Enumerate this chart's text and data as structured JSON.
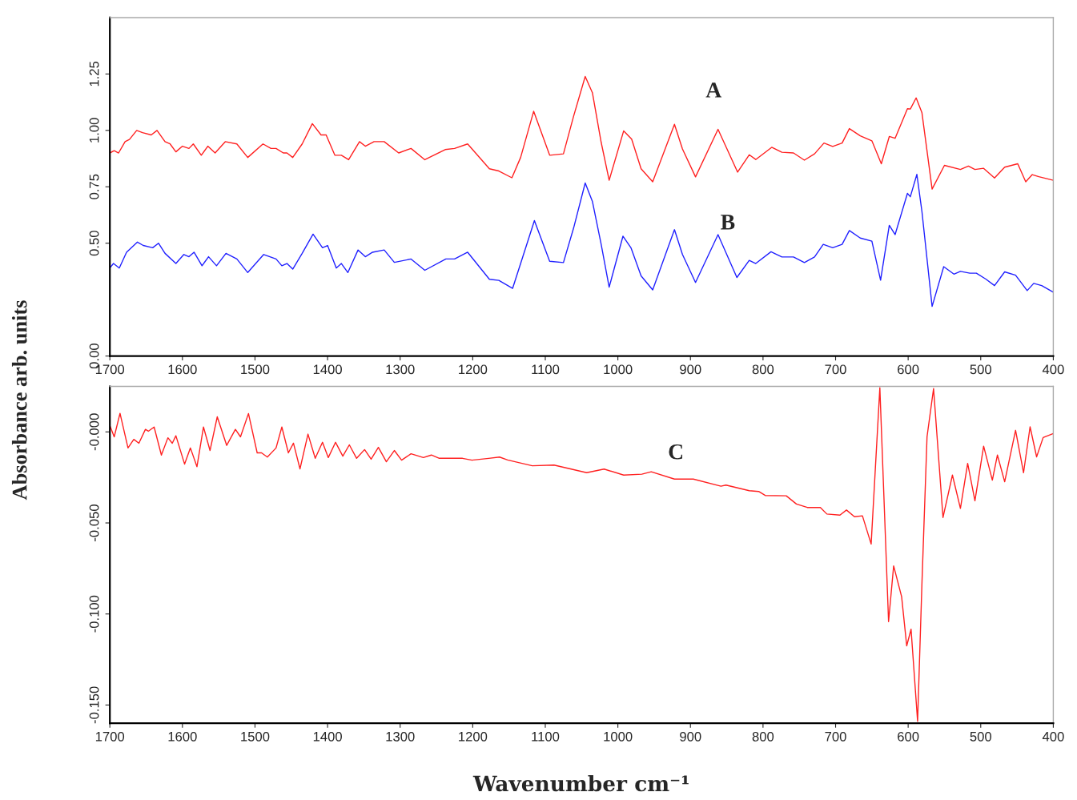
{
  "chart_data": [
    {
      "type": "line",
      "ylabel": "Absorbance arb. units",
      "xlim": [
        1700,
        400
      ],
      "ylim": [
        0,
        1.5
      ],
      "xticks": [
        1700,
        1600,
        1500,
        1400,
        1300,
        1200,
        1100,
        1000,
        900,
        800,
        700,
        600,
        500,
        400
      ],
      "yticks": [
        {
          "value": 0,
          "label": "0.00"
        },
        {
          "value": 0.5,
          "label": "0.50"
        },
        {
          "value": 0.75,
          "label": "0.75"
        },
        {
          "value": 1.0,
          "label": "1.00"
        },
        {
          "value": 1.25,
          "label": "1.25"
        }
      ],
      "grid": false,
      "marker": "none",
      "line_style": "solid",
      "annotations": [
        "A",
        "B"
      ],
      "series": [
        {
          "color": "#ff2020",
          "x": [
            1700,
            1694,
            1688,
            1679,
            1673,
            1663,
            1655,
            1643,
            1635,
            1624,
            1617,
            1609,
            1600,
            1591,
            1585,
            1574,
            1565,
            1555,
            1541,
            1525,
            1510,
            1489,
            1478,
            1471,
            1461,
            1456,
            1448,
            1435,
            1421,
            1409,
            1402,
            1390,
            1381,
            1371,
            1356,
            1348,
            1336,
            1322,
            1302,
            1285,
            1266,
            1238,
            1225,
            1207,
            1177,
            1164,
            1146,
            1134,
            1116,
            1094,
            1075,
            1061,
            1045,
            1035,
            1023,
            1012,
            992,
            981,
            968,
            952,
            922,
            911,
            893,
            862,
            835,
            819,
            810,
            788,
            774,
            758,
            743,
            729,
            716,
            704,
            691,
            681,
            666,
            650,
            637,
            626,
            618,
            601,
            597,
            589,
            581,
            567,
            550,
            528,
            517,
            508,
            496,
            481,
            467,
            449,
            438,
            429,
            420,
            400
          ],
          "values": [
            0.9,
            0.91,
            0.9,
            0.95,
            0.96,
            1.0,
            0.99,
            0.98,
            1.0,
            0.95,
            0.94,
            0.905,
            0.93,
            0.92,
            0.94,
            0.89,
            0.93,
            0.9,
            0.95,
            0.94,
            0.88,
            0.94,
            0.92,
            0.92,
            0.9,
            0.9,
            0.88,
            0.94,
            1.03,
            0.98,
            0.98,
            0.89,
            0.89,
            0.87,
            0.95,
            0.93,
            0.95,
            0.95,
            0.9,
            0.92,
            0.87,
            0.915,
            0.92,
            0.94,
            0.83,
            0.82,
            0.79,
            0.88,
            1.085,
            0.89,
            0.896,
            1.063,
            1.239,
            1.166,
            0.947,
            0.779,
            0.998,
            0.961,
            0.83,
            0.772,
            1.027,
            0.918,
            0.794,
            1.005,
            0.815,
            0.892,
            0.871,
            0.925,
            0.903,
            0.9,
            0.868,
            0.896,
            0.944,
            0.929,
            0.944,
            1.008,
            0.976,
            0.954,
            0.852,
            0.973,
            0.965,
            1.096,
            1.095,
            1.144,
            1.078,
            0.74,
            0.845,
            0.827,
            0.842,
            0.827,
            0.832,
            0.789,
            0.837,
            0.852,
            0.772,
            0.804,
            0.795,
            0.779
          ]
        },
        {
          "color": "#2020ff",
          "x": [
            1700,
            1695,
            1687,
            1677,
            1662,
            1654,
            1641,
            1633,
            1624,
            1609,
            1598,
            1591,
            1584,
            1573,
            1564,
            1553,
            1540,
            1525,
            1510,
            1488,
            1471,
            1463,
            1456,
            1448,
            1435,
            1420,
            1407,
            1400,
            1388,
            1381,
            1372,
            1358,
            1348,
            1338,
            1322,
            1308,
            1285,
            1266,
            1237,
            1225,
            1207,
            1177,
            1164,
            1145,
            1133,
            1115,
            1094,
            1075,
            1061,
            1045,
            1035,
            1023,
            1012,
            993,
            982,
            968,
            952,
            922,
            911,
            893,
            862,
            836,
            819,
            810,
            789,
            774,
            758,
            743,
            729,
            717,
            704,
            691,
            681,
            666,
            650,
            638,
            626,
            618,
            601,
            597,
            588,
            581,
            567,
            551,
            537,
            528,
            515,
            506,
            493,
            481,
            467,
            452,
            436,
            427,
            416,
            400
          ],
          "values": [
            0.39,
            0.41,
            0.39,
            0.46,
            0.505,
            0.49,
            0.48,
            0.5,
            0.455,
            0.41,
            0.45,
            0.44,
            0.46,
            0.4,
            0.44,
            0.4,
            0.455,
            0.43,
            0.37,
            0.45,
            0.43,
            0.4,
            0.41,
            0.385,
            0.455,
            0.54,
            0.48,
            0.49,
            0.39,
            0.41,
            0.37,
            0.47,
            0.44,
            0.46,
            0.47,
            0.415,
            0.43,
            0.38,
            0.43,
            0.43,
            0.46,
            0.34,
            0.335,
            0.3,
            0.42,
            0.6,
            0.42,
            0.414,
            0.567,
            0.767,
            0.684,
            0.495,
            0.305,
            0.531,
            0.48,
            0.355,
            0.293,
            0.56,
            0.45,
            0.326,
            0.538,
            0.348,
            0.424,
            0.41,
            0.462,
            0.439,
            0.439,
            0.414,
            0.439,
            0.495,
            0.48,
            0.495,
            0.556,
            0.523,
            0.509,
            0.336,
            0.579,
            0.538,
            0.721,
            0.706,
            0.805,
            0.64,
            0.22,
            0.396,
            0.363,
            0.375,
            0.367,
            0.367,
            0.341,
            0.312,
            0.373,
            0.358,
            0.29,
            0.322,
            0.312,
            0.283
          ]
        }
      ]
    },
    {
      "type": "line",
      "xlabel": "Wavenumber cm⁻¹",
      "xlim": [
        1700,
        400
      ],
      "ylim": [
        -0.16,
        0.025
      ],
      "xticks": [
        1700,
        1600,
        1500,
        1400,
        1300,
        1200,
        1100,
        1000,
        900,
        800,
        700,
        600,
        500,
        400
      ],
      "yticks": [
        {
          "value": 0,
          "label": "-0.000"
        },
        {
          "value": -0.05,
          "label": "-0.050"
        },
        {
          "value": -0.1,
          "label": "-0.100"
        },
        {
          "value": -0.15,
          "label": "-0.150"
        }
      ],
      "grid": false,
      "marker": "none",
      "line_style": "solid",
      "annotations": [
        "C"
      ],
      "series": [
        {
          "color": "#ff2020",
          "x": [
            1700,
            1694,
            1686,
            1675,
            1667,
            1660,
            1651,
            1647,
            1639,
            1629,
            1620,
            1614,
            1609,
            1597,
            1589,
            1580,
            1571,
            1562,
            1552,
            1539,
            1527,
            1520,
            1509,
            1497,
            1491,
            1483,
            1471,
            1463,
            1454,
            1447,
            1438,
            1427,
            1417,
            1407,
            1399,
            1389,
            1379,
            1370,
            1360,
            1349,
            1340,
            1330,
            1319,
            1308,
            1298,
            1285,
            1268,
            1257,
            1246,
            1214,
            1201,
            1178,
            1163,
            1152,
            1118,
            1088,
            1043,
            1019,
            992,
            967,
            954,
            922,
            896,
            858,
            851,
            819,
            806,
            797,
            768,
            754,
            739,
            721,
            712,
            694,
            685,
            674,
            663,
            651,
            639,
            627,
            620,
            609,
            602,
            596,
            587,
            581,
            574,
            565,
            552,
            539,
            528,
            518,
            508,
            496,
            484,
            477,
            467,
            452,
            441,
            432,
            423,
            414,
            400
          ],
          "values": [
            0.0035,
            -0.0027,
            0.0102,
            -0.0088,
            -0.0041,
            -0.0062,
            0.0014,
            0.0004,
            0.0027,
            -0.0127,
            -0.0032,
            -0.0062,
            -0.0021,
            -0.0177,
            -0.0088,
            -0.0191,
            0.0027,
            -0.0102,
            0.0083,
            -0.0074,
            0.0014,
            -0.0027,
            0.0101,
            -0.0115,
            -0.0115,
            -0.0138,
            -0.0088,
            0.0027,
            -0.0115,
            -0.0062,
            -0.0203,
            -0.0012,
            -0.0145,
            -0.0057,
            -0.0141,
            -0.0057,
            -0.0133,
            -0.0071,
            -0.0145,
            -0.0097,
            -0.015,
            -0.0085,
            -0.0164,
            -0.0102,
            -0.0155,
            -0.012,
            -0.0141,
            -0.0127,
            -0.0145,
            -0.0145,
            -0.0155,
            -0.0145,
            -0.0138,
            -0.0154,
            -0.0186,
            -0.0182,
            -0.0224,
            -0.0204,
            -0.0237,
            -0.0232,
            -0.0219,
            -0.0259,
            -0.0259,
            -0.0298,
            -0.0292,
            -0.0323,
            -0.0327,
            -0.0349,
            -0.0351,
            -0.0396,
            -0.0415,
            -0.0415,
            -0.0451,
            -0.0457,
            -0.0429,
            -0.0466,
            -0.0461,
            -0.0616,
            0.0243,
            -0.1042,
            -0.0736,
            -0.0905,
            -0.1175,
            -0.1084,
            -0.159,
            -0.0831,
            -0.0027,
            0.0238,
            -0.047,
            -0.0237,
            -0.042,
            -0.0173,
            -0.0378,
            -0.0078,
            -0.0265,
            -0.0127,
            -0.0274,
            0.0009,
            -0.0224,
            0.0028,
            -0.0137,
            -0.0031,
            -0.0009
          ]
        }
      ]
    }
  ]
}
